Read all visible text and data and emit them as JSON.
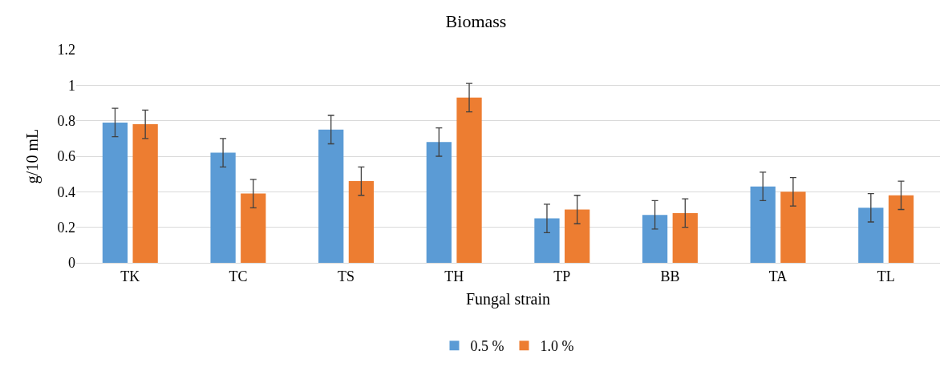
{
  "chart_data": {
    "type": "bar",
    "title": "Biomass",
    "xlabel": "Fungal strain",
    "ylabel": "g/10 mL",
    "categories": [
      "TK",
      "TC",
      "TS",
      "TH",
      "TP",
      "BB",
      "TA",
      "TL"
    ],
    "series": [
      {
        "name": "0.5 %",
        "color": "#5b9bd5",
        "values": [
          0.79,
          0.62,
          0.75,
          0.68,
          0.25,
          0.27,
          0.43,
          0.31
        ],
        "errors": [
          0.08,
          0.08,
          0.08,
          0.08,
          0.08,
          0.08,
          0.08,
          0.08
        ]
      },
      {
        "name": "1.0 %",
        "color": "#ed7d31",
        "values": [
          0.78,
          0.39,
          0.46,
          0.93,
          0.3,
          0.28,
          0.4,
          0.38
        ],
        "errors": [
          0.08,
          0.08,
          0.08,
          0.08,
          0.08,
          0.08,
          0.08,
          0.08
        ]
      }
    ],
    "ylim": [
      0,
      1.2
    ],
    "yticks": [
      0,
      0.2,
      0.4,
      0.6,
      0.8,
      1,
      1.2
    ],
    "grid": "y",
    "legend": "bottom"
  }
}
